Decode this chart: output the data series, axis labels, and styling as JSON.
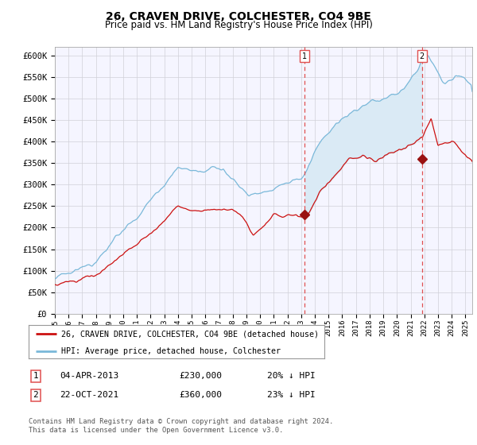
{
  "title": "26, CRAVEN DRIVE, COLCHESTER, CO4 9BE",
  "subtitle": "Price paid vs. HM Land Registry's House Price Index (HPI)",
  "ylim": [
    0,
    620000
  ],
  "yticks": [
    0,
    50000,
    100000,
    150000,
    200000,
    250000,
    300000,
    350000,
    400000,
    450000,
    500000,
    550000,
    600000
  ],
  "ytick_labels": [
    "£0",
    "£50K",
    "£100K",
    "£150K",
    "£200K",
    "£250K",
    "£300K",
    "£350K",
    "£400K",
    "£450K",
    "£500K",
    "£550K",
    "£600K"
  ],
  "hpi_color": "#7ab8d9",
  "hpi_fill_color": "#daeaf5",
  "price_color": "#cc1111",
  "marker_color": "#991111",
  "vline_color": "#e05050",
  "background_color": "#f5f5ff",
  "grid_color": "#d0d0d8",
  "title_fontsize": 10,
  "subtitle_fontsize": 8.5,
  "tick_fontsize": 7.5,
  "legend_label_red": "26, CRAVEN DRIVE, COLCHESTER, CO4 9BE (detached house)",
  "legend_label_blue": "HPI: Average price, detached house, Colchester",
  "annotation1_label": "1",
  "annotation1_date": "04-APR-2013",
  "annotation1_price": "£230,000",
  "annotation1_pct": "20% ↓ HPI",
  "annotation1_year": 2013.25,
  "annotation1_value": 230000,
  "annotation2_label": "2",
  "annotation2_date": "22-OCT-2021",
  "annotation2_price": "£360,000",
  "annotation2_pct": "23% ↓ HPI",
  "annotation2_year": 2021.83,
  "annotation2_value": 360000,
  "footnote": "Contains HM Land Registry data © Crown copyright and database right 2024.\nThis data is licensed under the Open Government Licence v3.0.",
  "xstart": 1995,
  "xend": 2025.5,
  "n_points": 730
}
